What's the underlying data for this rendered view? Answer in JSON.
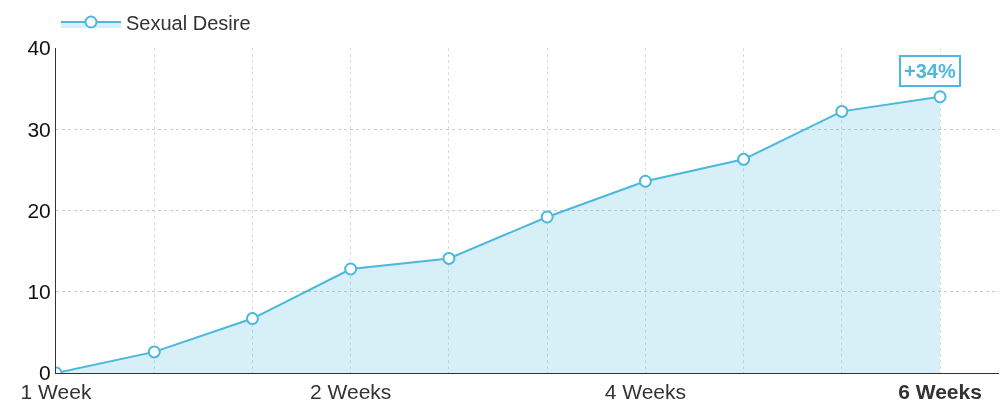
{
  "chart_data": {
    "type": "area",
    "categories": [
      "1 Week",
      null,
      null,
      "2 Weeks",
      null,
      null,
      "4 Weeks",
      null,
      null,
      "6 Weeks"
    ],
    "series": [
      {
        "name": "Sexual Desire",
        "color": "#4bb8dc",
        "values": [
          0,
          2.6,
          6.7,
          12.8,
          14.1,
          19.2,
          23.6,
          26.3,
          32.2,
          34
        ]
      }
    ],
    "ylim": [
      0,
      40
    ],
    "yticks": [
      0,
      10,
      20,
      30,
      40
    ],
    "annotations": [
      {
        "text": "+34%",
        "x": "6 Weeks",
        "y": 34
      }
    ],
    "grid": true,
    "legend": "top left",
    "marker": "circle",
    "line_style": "solid"
  }
}
